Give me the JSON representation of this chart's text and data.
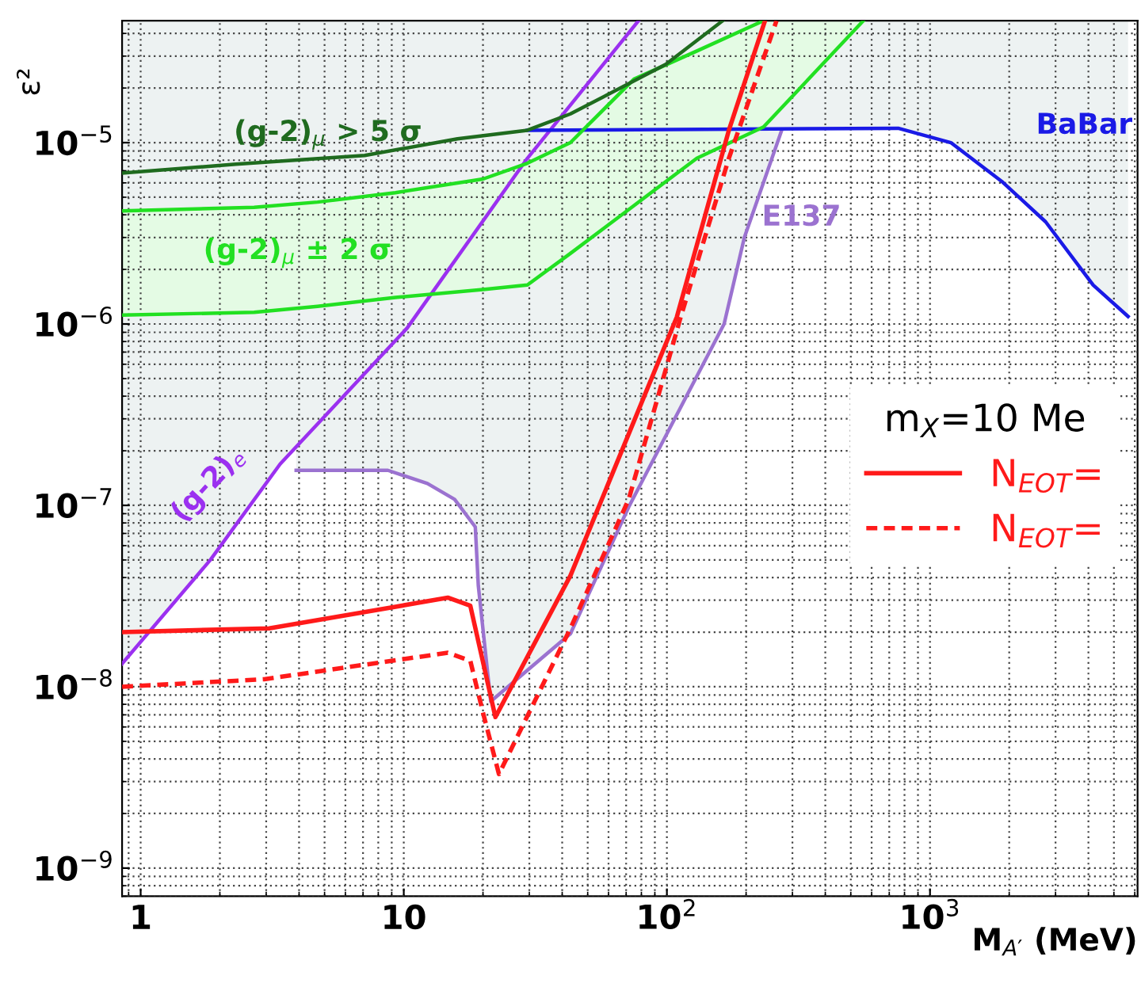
{
  "chart_data": {
    "type": "line",
    "xlabel": "M$_{A′}$ (MeV)",
    "ylabel": "ε²",
    "legend_title": "m$_{X}$=10 Me",
    "legend": "right",
    "log": "xy",
    "grid": true,
    "xlim": [
      0.85,
      6150
    ],
    "ylim": [
      7e-10,
      4.7e-05
    ],
    "xticks": [
      {
        "value": 1,
        "label": "1"
      },
      {
        "value": 10,
        "label": "10"
      },
      {
        "value": 100,
        "label": "10$^{2}$"
      },
      {
        "value": 1000,
        "label": "10$^{3}$"
      }
    ],
    "yticks": [
      {
        "value": 1e-09,
        "label": "10$^{−9}$"
      },
      {
        "value": 1e-08,
        "label": "10$^{−8}$"
      },
      {
        "value": 1e-07,
        "label": "10$^{−7}$"
      },
      {
        "value": 1e-06,
        "label": "10$^{−6}$"
      },
      {
        "value": 1e-05,
        "label": "10$^{−5}$"
      }
    ],
    "series": [
      {
        "name": "(g-2)$_{e}$",
        "color": "#9b30f0",
        "x": [
          0.85,
          1.84,
          3.39,
          10.3,
          29.5,
          78
        ],
        "values": [
          1.34e-08,
          5e-08,
          1.69e-07,
          9.5e-07,
          8.2e-06,
          4.7e-05
        ]
      },
      {
        "name": "E137",
        "color": "#9b72d0",
        "x": [
          3.9,
          8.7,
          12.3,
          15.6,
          18.7,
          19.2,
          21.4,
          43,
          71.6,
          165,
          197,
          272
        ],
        "values": [
          1.56e-07,
          1.56e-07,
          1.32e-07,
          1.08e-07,
          7.6e-08,
          3.6e-08,
          8.3e-09,
          1.96e-08,
          9.8e-08,
          1e-06,
          3e-06,
          1.15e-05
        ]
      },
      {
        "name": "BaBar",
        "color": "#1a1ae6",
        "x": [
          29.5,
          757,
          1200,
          1890,
          2750,
          4170,
          5660
        ],
        "values": [
          1.17e-05,
          1.2e-05,
          1e-05,
          6.05e-06,
          3.66e-06,
          1.64e-06,
          1.1e-06
        ]
      },
      {
        "name": "(g-2)$_{μ}$ ± 2 σ",
        "color": "#22e022",
        "x": [
          0.85,
          2.7,
          4.7,
          9.3,
          20,
          29.5,
          43,
          75,
          130,
          233
        ],
        "values": [
          4.2e-06,
          4.4e-06,
          4.7e-06,
          5.3e-06,
          6.3e-06,
          7.7e-06,
          1e-05,
          2.24e-05,
          3.2e-05,
          4.7e-05
        ]
      },
      {
        "color": "#22e022",
        "x": [
          0.85,
          2.7,
          4.7,
          9.3,
          20,
          29.5,
          43,
          75,
          130,
          233,
          558
        ],
        "values": [
          1.12e-06,
          1.16e-06,
          1.25e-06,
          1.4e-06,
          1.55e-06,
          1.64e-06,
          2.45e-06,
          4.5e-06,
          8.2e-06,
          1.22e-05,
          4.7e-05
        ]
      },
      {
        "name": "(g-2)$_{μ}$ > 5 σ",
        "color": "#1f6b1f",
        "x": [
          0.85,
          2.3,
          7.1,
          16,
          29.5,
          43,
          99,
          163
        ],
        "values": [
          6.8e-06,
          7.6e-06,
          8.5e-06,
          1.05e-05,
          1.17e-05,
          1.44e-05,
          2.7e-05,
          4.7e-05
        ]
      },
      {
        "name": "N$_{EOT}$=",
        "color": "#ff1a1a",
        "line_style": "solid",
        "x": [
          0.85,
          3.08,
          9.3,
          14.7,
          17.9,
          22.3,
          43,
          109,
          172,
          236
        ],
        "values": [
          2e-08,
          2.1e-08,
          2.76e-08,
          3.1e-08,
          2.8e-08,
          6.8e-09,
          4.1e-08,
          1.09e-06,
          1.17e-05,
          4.7e-05
        ]
      },
      {
        "name": "N$_{EOT}$=",
        "color": "#ff1a1a",
        "line_style": "dashed",
        "x": [
          0.85,
          2.95,
          14.7,
          17.9,
          20,
          23,
          43,
          71.6,
          113,
          172,
          261
        ],
        "values": [
          1e-08,
          1.1e-08,
          1.54e-08,
          1.39e-08,
          7.2e-09,
          3.3e-09,
          2.1e-08,
          1.08e-07,
          1.1e-06,
          8.2e-06,
          4.7e-05
        ]
      }
    ]
  }
}
